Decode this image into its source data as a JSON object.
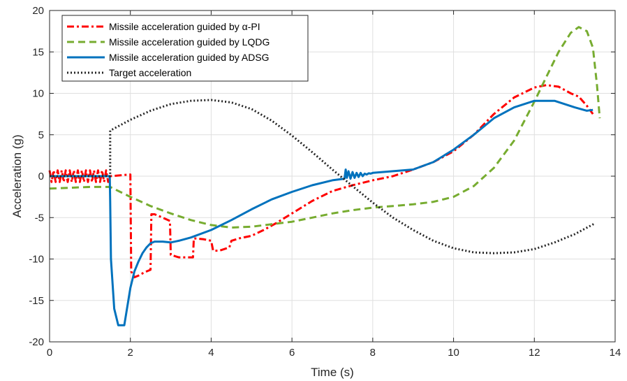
{
  "chart_data": {
    "type": "line",
    "title": "",
    "xlabel": "Time (s)",
    "ylabel": "Acceleration (g)",
    "xlim": [
      0,
      14
    ],
    "ylim": [
      -20,
      20
    ],
    "xticks": [
      0,
      2,
      4,
      6,
      8,
      10,
      12,
      14
    ],
    "yticks": [
      -20,
      -15,
      -10,
      -5,
      0,
      5,
      10,
      15,
      20
    ],
    "grid": true,
    "legend_position": "top-left",
    "series": [
      {
        "name": "Missile acceleration guided by α-PI",
        "color": "#ff0000",
        "dash": "dashdot",
        "x": [
          0,
          0.05,
          0.1,
          0.15,
          0.2,
          0.25,
          0.3,
          0.35,
          0.4,
          0.45,
          0.5,
          0.55,
          0.6,
          0.65,
          0.7,
          0.75,
          0.8,
          0.85,
          0.9,
          0.95,
          1.0,
          1.05,
          1.1,
          1.15,
          1.2,
          1.25,
          1.3,
          1.35,
          1.4,
          1.45,
          1.5,
          2.0,
          2.02,
          2.1,
          2.2,
          2.35,
          2.5,
          2.52,
          2.6,
          2.8,
          2.98,
          3.0,
          3.2,
          3.4,
          3.55,
          3.57,
          3.8,
          4.0,
          4.05,
          4.2,
          4.45,
          4.5,
          4.7,
          5.0,
          5.3,
          5.6,
          6.0,
          6.5,
          7.0,
          7.5,
          8.0,
          8.5,
          9.0,
          9.5,
          10.0,
          10.5,
          11.0,
          11.5,
          12.0,
          12.3,
          12.6,
          12.9,
          13.1,
          13.3,
          13.45
        ],
        "y": [
          0.7,
          -0.7,
          0.7,
          -0.7,
          0.7,
          -0.7,
          0.7,
          -0.7,
          0.7,
          -0.7,
          0.7,
          -0.7,
          0.7,
          -0.7,
          0.7,
          -0.7,
          0.7,
          -0.7,
          0.7,
          -0.7,
          0.7,
          -0.7,
          0.7,
          -0.7,
          0.7,
          -0.7,
          0.7,
          -0.7,
          0.7,
          -0.7,
          0.0,
          0.2,
          -11.5,
          -12.2,
          -12.0,
          -11.6,
          -11.3,
          -4.6,
          -4.6,
          -5.0,
          -5.4,
          -9.5,
          -9.8,
          -9.8,
          -9.8,
          -7.5,
          -7.6,
          -7.8,
          -9.0,
          -9.0,
          -8.6,
          -7.8,
          -7.5,
          -7.2,
          -6.5,
          -5.7,
          -4.5,
          -3.0,
          -1.8,
          -1.1,
          -0.5,
          0.0,
          0.8,
          1.7,
          3.0,
          5.0,
          7.5,
          9.5,
          10.7,
          11.0,
          10.8,
          10.0,
          9.6,
          8.5,
          7.5
        ]
      },
      {
        "name": "Missile acceleration guided by LQDG",
        "color": "#77ac30",
        "dash": "dash",
        "x": [
          0,
          0.5,
          1.0,
          1.5,
          2.0,
          2.5,
          3.0,
          3.5,
          4.0,
          4.5,
          5.0,
          5.5,
          6.0,
          6.5,
          7.0,
          7.5,
          8.0,
          8.5,
          9.0,
          9.5,
          10.0,
          10.5,
          11.0,
          11.5,
          12.0,
          12.3,
          12.6,
          12.9,
          13.1,
          13.3,
          13.45,
          13.55,
          13.62
        ],
        "y": [
          -1.5,
          -1.4,
          -1.3,
          -1.3,
          -2.5,
          -3.6,
          -4.5,
          -5.3,
          -5.9,
          -6.2,
          -6.1,
          -5.8,
          -5.5,
          -5.0,
          -4.5,
          -4.1,
          -3.8,
          -3.6,
          -3.4,
          -3.1,
          -2.5,
          -1.2,
          1.0,
          4.3,
          9.0,
          12.0,
          15.0,
          17.3,
          18.0,
          17.5,
          15.5,
          11.0,
          7.0
        ]
      },
      {
        "name": "Missile acceleration guided by ADSG",
        "color": "#0072bd",
        "dash": "solid",
        "x": [
          0,
          1.49,
          1.5,
          1.52,
          1.6,
          1.7,
          1.8,
          1.85,
          1.9,
          2.0,
          2.1,
          2.2,
          2.3,
          2.4,
          2.5,
          2.6,
          2.8,
          3.0,
          3.2,
          3.5,
          4.0,
          4.5,
          5.0,
          5.5,
          6.0,
          6.5,
          7.0,
          7.3,
          7.33,
          7.36,
          7.4,
          7.45,
          7.5,
          7.55,
          7.6,
          7.65,
          7.7,
          7.75,
          7.8,
          7.85,
          7.9,
          7.95,
          8.0,
          8.5,
          9.0,
          9.5,
          10.0,
          10.5,
          11.0,
          11.5,
          12.0,
          12.5,
          13.0,
          13.3,
          13.45
        ],
        "y": [
          0,
          0,
          -3,
          -10,
          -16,
          -18,
          -18,
          -18,
          -16.5,
          -13.5,
          -11.5,
          -10.3,
          -9.3,
          -8.6,
          -8.1,
          -7.9,
          -7.9,
          -8.0,
          -7.8,
          -7.4,
          -6.5,
          -5.3,
          -4.0,
          -2.8,
          -1.9,
          -1.1,
          -0.5,
          -0.3,
          0.8,
          -0.2,
          0.6,
          -0.3,
          0.5,
          -0.2,
          0.4,
          -0.1,
          0.4,
          0.0,
          0.3,
          0.2,
          0.35,
          0.3,
          0.4,
          0.6,
          0.8,
          1.7,
          3.2,
          5.0,
          7.0,
          8.3,
          9.1,
          9.1,
          8.3,
          7.9,
          8.0
        ]
      },
      {
        "name": "Target acceleration",
        "color": "#262626",
        "dash": "dot",
        "x": [
          0,
          1.49,
          1.5,
          1.5,
          2.0,
          2.5,
          3.0,
          3.5,
          4.0,
          4.5,
          5.0,
          5.5,
          6.0,
          6.5,
          7.0,
          7.5,
          8.0,
          8.5,
          9.0,
          9.5,
          10.0,
          10.5,
          11.0,
          11.5,
          12.0,
          12.5,
          13.0,
          13.5
        ],
        "y": [
          0,
          0,
          0,
          5.5,
          6.8,
          7.9,
          8.7,
          9.1,
          9.2,
          8.9,
          8.1,
          6.7,
          4.9,
          2.9,
          0.8,
          -1.2,
          -3.2,
          -5.0,
          -6.5,
          -7.8,
          -8.7,
          -9.2,
          -9.3,
          -9.2,
          -8.8,
          -8.0,
          -7.0,
          -5.7
        ]
      }
    ]
  }
}
